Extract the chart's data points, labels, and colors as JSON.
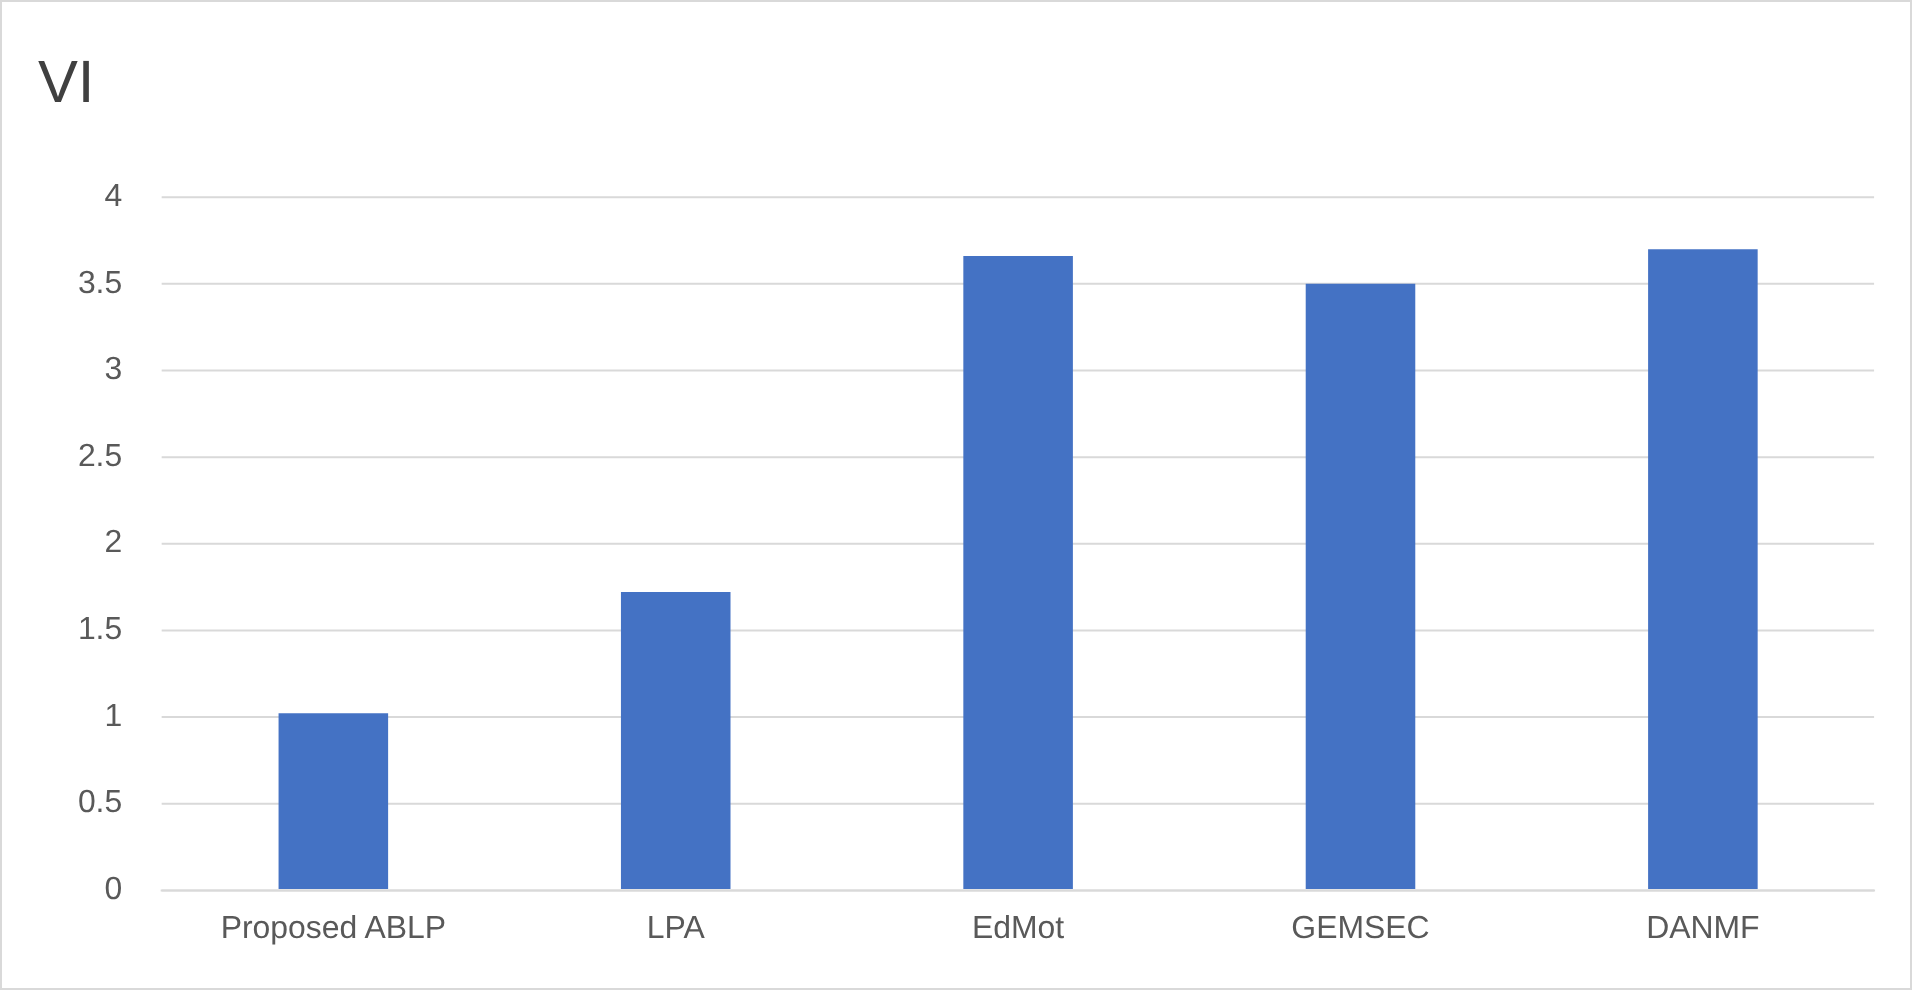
{
  "chart_data": {
    "type": "bar",
    "title": "VI",
    "categories": [
      "Proposed ABLP",
      "LPA",
      "EdMot",
      "GEMSEC",
      "DANMF"
    ],
    "values": [
      1.02,
      1.72,
      3.66,
      3.5,
      3.7
    ],
    "color": "#4472c4",
    "ylim": [
      0,
      4
    ],
    "yticks": [
      0,
      0.5,
      1,
      1.5,
      2,
      2.5,
      3,
      3.5,
      4
    ],
    "grid": "y",
    "legend": false
  }
}
